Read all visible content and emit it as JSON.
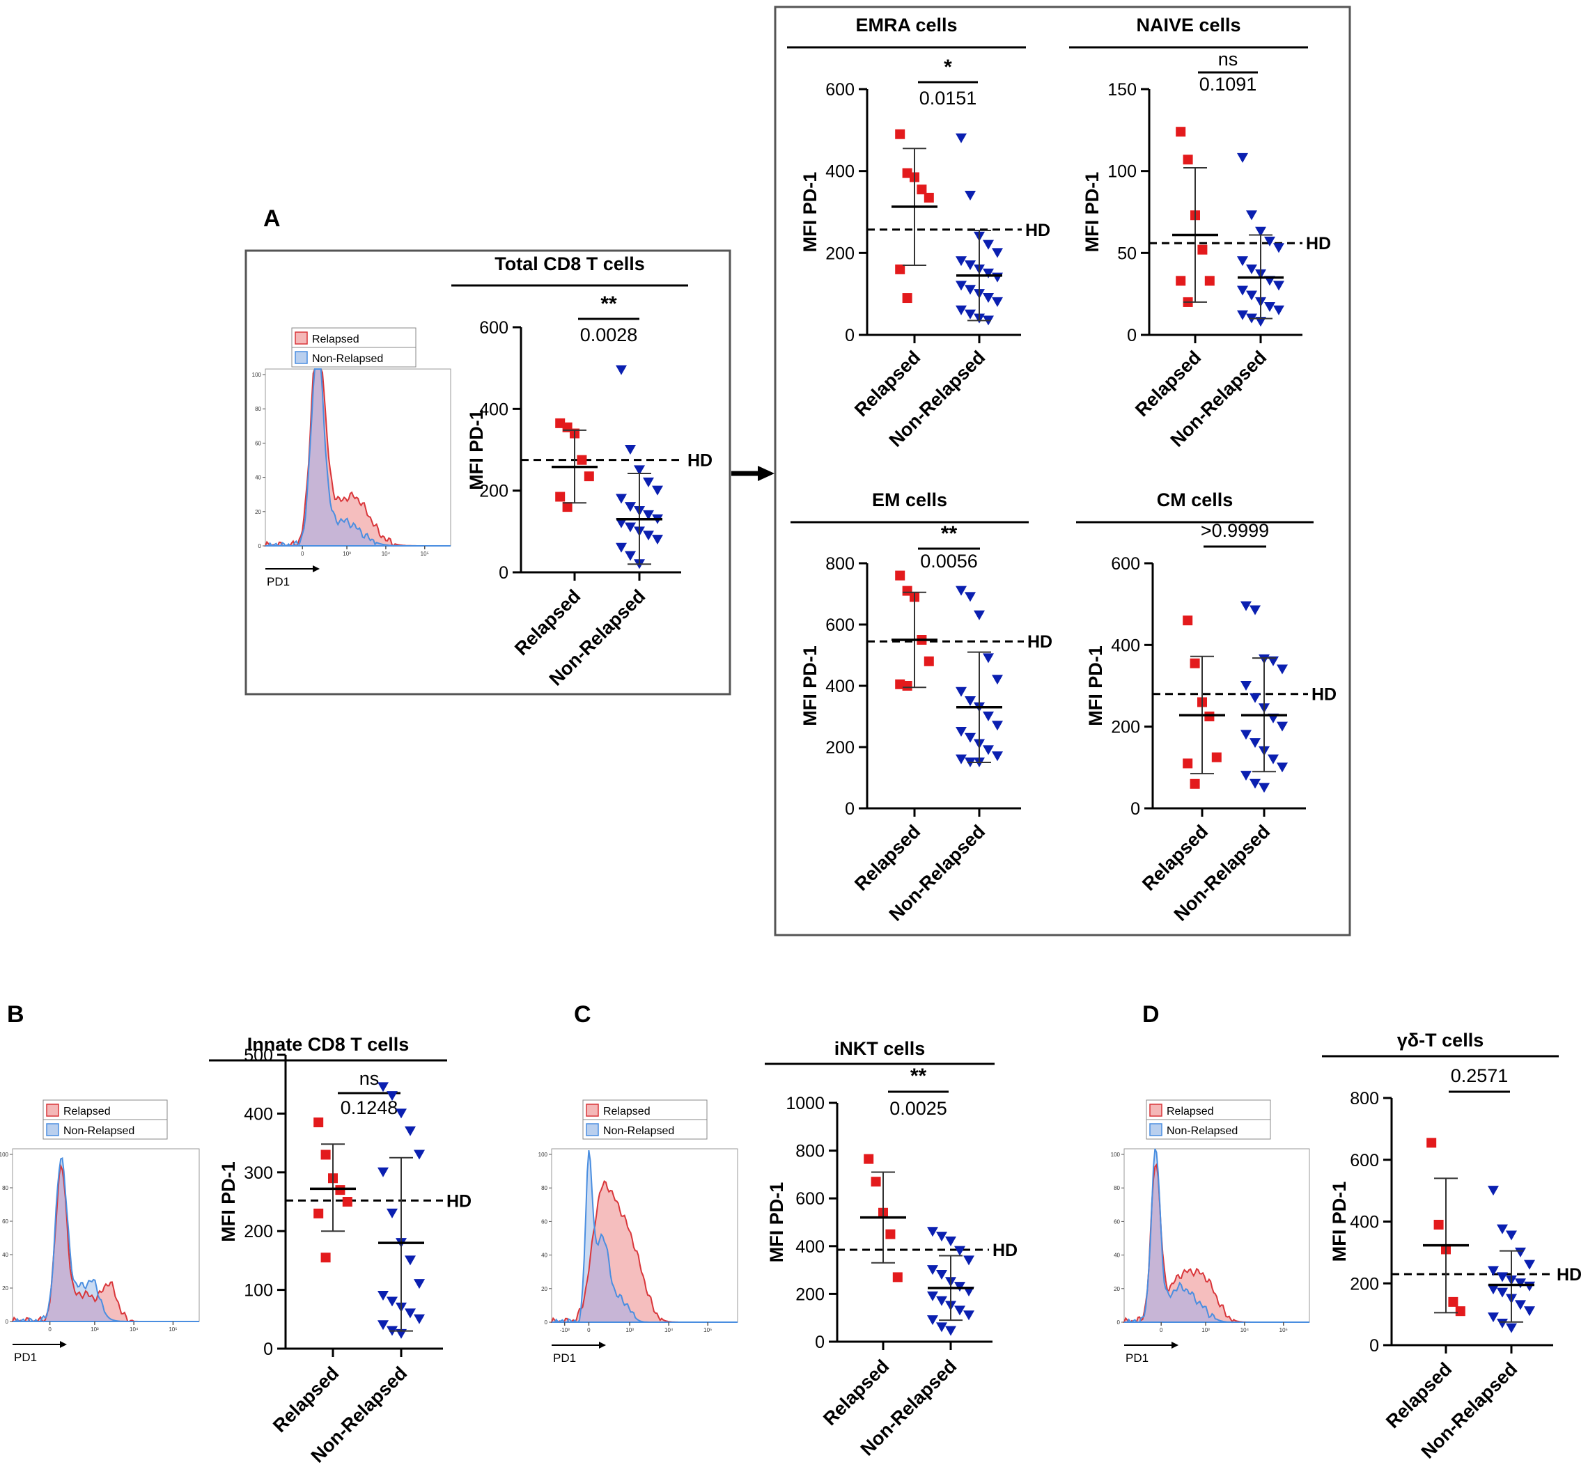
{
  "figure": {
    "panel_letters": [
      "A",
      "B",
      "C",
      "D"
    ],
    "arrow": "right-arrow"
  },
  "colors": {
    "relapsed": "#e31a1c",
    "non_relapsed": "#0a1fb0",
    "hist_relapsed_fill": "#f4b7b7",
    "hist_relapsed_line": "#d9363a",
    "hist_non_fill": "#b9cfee",
    "hist_non_line": "#4a8ee0",
    "overlap_fill": "#c7b2d3"
  },
  "chart_data": [
    {
      "id": "total_cd8",
      "type": "scatter",
      "title": "Total  CD8 T cells",
      "ylabel": "MFI PD-1",
      "categories": [
        "Relapsed",
        "Non-Relapsed"
      ],
      "ylim": [
        0,
        600
      ],
      "yticks": [
        0,
        200,
        400,
        600
      ],
      "hd_label": "HD",
      "hd_value": 275,
      "stat_label": "**",
      "p_value": "0.0028",
      "series": [
        {
          "name": "Relapsed",
          "marker": "square",
          "mean": 258,
          "sd_low": 170,
          "sd_high": 348,
          "values": [
            365,
            355,
            340,
            275,
            235,
            185,
            160
          ]
        },
        {
          "name": "Non-Relapsed",
          "marker": "triangle",
          "mean": 130,
          "sd_low": 20,
          "sd_high": 242,
          "values": [
            495,
            300,
            250,
            220,
            200,
            180,
            160,
            150,
            140,
            130,
            120,
            110,
            100,
            90,
            80,
            60,
            40,
            20
          ]
        }
      ]
    },
    {
      "id": "emra",
      "type": "scatter",
      "title": "EMRA cells",
      "ylabel": "MFI PD-1",
      "categories": [
        "Relapsed",
        "Non-Relapsed"
      ],
      "ylim": [
        0,
        600
      ],
      "yticks": [
        0,
        200,
        400,
        600
      ],
      "hd_label": "HD",
      "hd_value": 257,
      "stat_label": "*",
      "p_value": "0.0151",
      "series": [
        {
          "name": "Relapsed",
          "marker": "square",
          "mean": 313,
          "sd_low": 170,
          "sd_high": 455,
          "values": [
            490,
            395,
            385,
            355,
            335,
            160,
            90
          ]
        },
        {
          "name": "Non-Relapsed",
          "marker": "triangle",
          "mean": 145,
          "sd_low": 35,
          "sd_high": 255,
          "values": [
            480,
            340,
            240,
            220,
            200,
            180,
            170,
            160,
            150,
            140,
            120,
            110,
            100,
            90,
            80,
            60,
            50,
            40,
            35
          ]
        }
      ]
    },
    {
      "id": "naive",
      "type": "scatter",
      "title": "NAIVE cells",
      "ylabel": "MFI PD-1",
      "categories": [
        "Relapsed",
        "Non-Relapsed"
      ],
      "ylim": [
        0,
        150
      ],
      "yticks": [
        0,
        50,
        100,
        150
      ],
      "hd_label": "HD",
      "hd_value": 56,
      "stat_label": "ns",
      "p_value": "0.1091",
      "series": [
        {
          "name": "Relapsed",
          "marker": "square",
          "mean": 61,
          "sd_low": 20,
          "sd_high": 102,
          "values": [
            124,
            107,
            73,
            52,
            33,
            33,
            20
          ]
        },
        {
          "name": "Non-Relapsed",
          "marker": "triangle",
          "mean": 35,
          "sd_low": 10,
          "sd_high": 61,
          "values": [
            108,
            73,
            63,
            57,
            53,
            45,
            40,
            37,
            33,
            30,
            27,
            24,
            20,
            17,
            15,
            12,
            10,
            8
          ]
        }
      ]
    },
    {
      "id": "em",
      "type": "scatter",
      "title": "EM cells",
      "ylabel": "MFI PD-1",
      "categories": [
        "Relapsed",
        "Non-Relapsed"
      ],
      "ylim": [
        0,
        800
      ],
      "yticks": [
        0,
        200,
        400,
        600,
        800
      ],
      "hd_label": "HD",
      "hd_value": 545,
      "stat_label": "**",
      "p_value": "0.0056",
      "series": [
        {
          "name": "Relapsed",
          "marker": "square",
          "mean": 550,
          "sd_low": 395,
          "sd_high": 705,
          "values": [
            760,
            710,
            690,
            550,
            480,
            405,
            400
          ]
        },
        {
          "name": "Non-Relapsed",
          "marker": "triangle",
          "mean": 330,
          "sd_low": 150,
          "sd_high": 510,
          "values": [
            710,
            690,
            630,
            490,
            420,
            380,
            350,
            330,
            300,
            270,
            250,
            230,
            210,
            190,
            170,
            160,
            150,
            150
          ]
        }
      ]
    },
    {
      "id": "cm",
      "type": "scatter",
      "title": "CM cells",
      "ylabel": "MFI PD-1",
      "categories": [
        "Relapsed",
        "Non-Relapsed"
      ],
      "ylim": [
        0,
        600
      ],
      "yticks": [
        0,
        200,
        400,
        600
      ],
      "hd_label": "HD",
      "hd_value": 280,
      "stat_label": "",
      "p_value": ">0.9999",
      "series": [
        {
          "name": "Relapsed",
          "marker": "square",
          "mean": 228,
          "sd_low": 85,
          "sd_high": 372,
          "values": [
            460,
            355,
            260,
            225,
            125,
            110,
            60
          ]
        },
        {
          "name": "Non-Relapsed",
          "marker": "triangle",
          "mean": 228,
          "sd_low": 90,
          "sd_high": 368,
          "values": [
            495,
            485,
            365,
            360,
            340,
            300,
            270,
            245,
            220,
            200,
            180,
            160,
            140,
            120,
            100,
            80,
            60,
            50
          ]
        }
      ]
    },
    {
      "id": "innate_cd8",
      "type": "scatter",
      "title": "Innate CD8 T cells",
      "ylabel": "MFI PD-1",
      "categories": [
        "Relapsed",
        "Non-Relapsed"
      ],
      "ylim": [
        0,
        500
      ],
      "yticks": [
        0,
        100,
        200,
        300,
        400,
        500
      ],
      "hd_label": "HD",
      "hd_value": 252,
      "stat_label": "ns",
      "p_value": "0.1248",
      "series": [
        {
          "name": "Relapsed",
          "marker": "square",
          "mean": 272,
          "sd_low": 200,
          "sd_high": 348,
          "values": [
            385,
            330,
            290,
            270,
            250,
            230,
            155
          ]
        },
        {
          "name": "Non-Relapsed",
          "marker": "triangle",
          "mean": 180,
          "sd_low": 30,
          "sd_high": 325,
          "values": [
            445,
            430,
            400,
            370,
            330,
            300,
            230,
            180,
            150,
            110,
            90,
            80,
            70,
            60,
            50,
            40,
            30,
            25
          ]
        }
      ]
    },
    {
      "id": "inkt",
      "type": "scatter",
      "title": "iNKT cells",
      "ylabel": "MFI PD-1",
      "categories": [
        "Relapsed",
        "Non-Relapsed"
      ],
      "ylim": [
        0,
        1000
      ],
      "yticks": [
        0,
        200,
        400,
        600,
        800,
        1000
      ],
      "hd_label": "HD",
      "hd_value": 385,
      "stat_label": "**",
      "p_value": "0.0025",
      "series": [
        {
          "name": "Relapsed",
          "marker": "square",
          "mean": 520,
          "sd_low": 330,
          "sd_high": 710,
          "values": [
            765,
            670,
            540,
            450,
            270
          ]
        },
        {
          "name": "Non-Relapsed",
          "marker": "triangle",
          "mean": 225,
          "sd_low": 90,
          "sd_high": 360,
          "values": [
            460,
            440,
            420,
            380,
            340,
            300,
            280,
            250,
            230,
            210,
            190,
            170,
            150,
            130,
            110,
            90,
            60,
            45
          ]
        }
      ]
    },
    {
      "id": "gd_t",
      "type": "scatter",
      "title": "γδ-T cells",
      "ylabel": "MFI PD-1",
      "categories": [
        "Relapsed",
        "Non-Relapsed"
      ],
      "ylim": [
        0,
        800
      ],
      "yticks": [
        0,
        200,
        400,
        600,
        800
      ],
      "hd_label": "HD",
      "hd_value": 230,
      "stat_label": "",
      "p_value": "0.2571",
      "series": [
        {
          "name": "Relapsed",
          "marker": "square",
          "mean": 323,
          "sd_low": 105,
          "sd_high": 540,
          "values": [
            655,
            390,
            310,
            140,
            110
          ]
        },
        {
          "name": "Non-Relapsed",
          "marker": "triangle",
          "mean": 195,
          "sd_low": 75,
          "sd_high": 305,
          "values": [
            500,
            375,
            355,
            300,
            260,
            240,
            220,
            210,
            200,
            190,
            180,
            170,
            150,
            130,
            110,
            90,
            70,
            55
          ]
        }
      ]
    }
  ],
  "histograms": [
    {
      "id": "hist_a",
      "legend": [
        "Relapsed",
        "Non-Relapsed"
      ],
      "xlabel": "PD1",
      "yticks": [
        "0",
        "20",
        "40",
        "60",
        "80",
        "100"
      ],
      "xticks": [
        "0",
        "10³",
        "10⁴",
        "10⁵"
      ]
    },
    {
      "id": "hist_b",
      "legend": [
        "Relapsed",
        "Non-Relapsed"
      ],
      "xlabel": "PD1",
      "yticks": [
        "0",
        "20",
        "40",
        "60",
        "80",
        "100"
      ],
      "xticks": [
        "0",
        "10³",
        "10⁴",
        "10⁵"
      ]
    },
    {
      "id": "hist_c",
      "legend": [
        "Relapsed",
        "Non-Relapsed"
      ],
      "xlabel": "PD1",
      "yticks": [
        "0",
        "20",
        "40",
        "60",
        "80",
        "100"
      ],
      "xticks": [
        "-10³",
        "0",
        "10³",
        "10⁴",
        "10⁵"
      ]
    },
    {
      "id": "hist_d",
      "legend": [
        "Relapsed",
        "Non-Relapsed"
      ],
      "xlabel": "PD1",
      "yticks": [
        "0",
        "20",
        "40",
        "60",
        "80",
        "100"
      ],
      "xticks": [
        "0",
        "10³",
        "10⁴",
        "10⁵"
      ]
    }
  ]
}
